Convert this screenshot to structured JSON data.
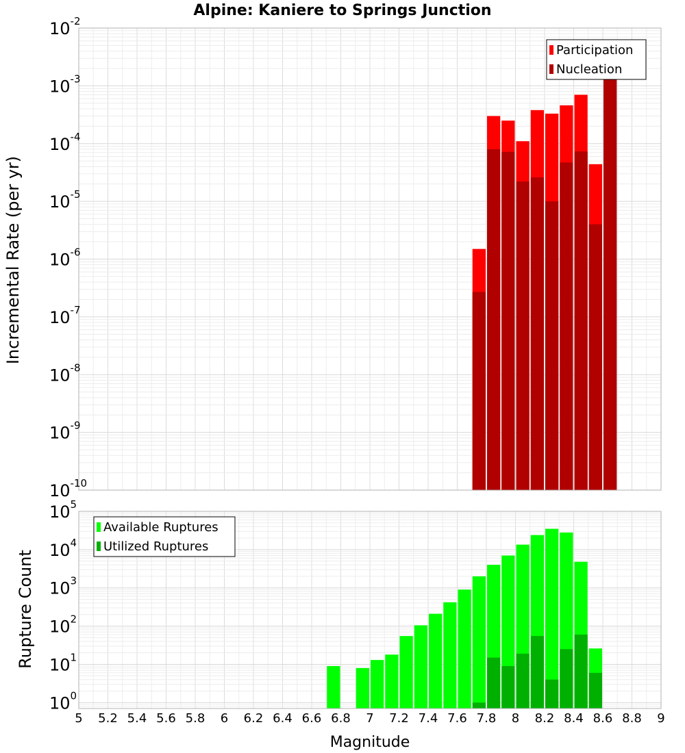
{
  "chart_data": [
    {
      "type": "bar",
      "title": "Alpine: Kaniere to Springs Junction",
      "ylabel": "Incremental Rate (per yr)",
      "xlabel": "",
      "xlim": [
        5,
        9
      ],
      "ylim": [
        1e-10,
        0.01
      ],
      "yscale": "log",
      "bar_width": 0.1,
      "grid": true,
      "legend_position": "top-right",
      "x": [
        7.7,
        7.8,
        7.9,
        8.0,
        8.1,
        8.2,
        8.3,
        8.4,
        8.5,
        8.6
      ],
      "series": [
        {
          "name": "Participation",
          "color": "#ff0000",
          "values": [
            1.5e-06,
            0.0003,
            0.00025,
            0.00011,
            0.00038,
            0.00033,
            0.00046,
            0.0007,
            4.4e-05,
            0.0014
          ]
        },
        {
          "name": "Nucleation",
          "color": "#b00000",
          "values": [
            2.7e-07,
            8e-05,
            7.2e-05,
            2.2e-05,
            2.6e-05,
            1e-05,
            4.7e-05,
            7.3e-05,
            4e-06,
            0.0014
          ]
        }
      ]
    },
    {
      "type": "bar",
      "title": "",
      "ylabel": "Rupture Count",
      "xlabel": "Magnitude",
      "xlim": [
        5,
        9
      ],
      "ylim": [
        0.7,
        100000.0
      ],
      "yscale": "log",
      "bar_width": 0.1,
      "grid": true,
      "legend_position": "top-left",
      "x": [
        6.7,
        6.8,
        6.9,
        7.0,
        7.1,
        7.2,
        7.3,
        7.4,
        7.5,
        7.6,
        7.7,
        7.8,
        7.9,
        8.0,
        8.1,
        8.2,
        8.3,
        8.4,
        8.5,
        8.6
      ],
      "series": [
        {
          "name": "Available Ruptures",
          "color": "#00ff00",
          "values": [
            9,
            0,
            8,
            13,
            18,
            55,
            105,
            210,
            420,
            900,
            2000,
            4000,
            7000,
            13500,
            24000,
            35000,
            28000,
            4800,
            26,
            0
          ]
        },
        {
          "name": "Utilized Ruptures",
          "color": "#00b000",
          "values": [
            0,
            0,
            0,
            0,
            0,
            0,
            0,
            0,
            0,
            0,
            1,
            15,
            9,
            19,
            55,
            4,
            25,
            60,
            6,
            0
          ]
        }
      ],
      "xticks": [
        "5",
        "5.2",
        "5.4",
        "5.6",
        "5.8",
        "6",
        "6.2",
        "6.4",
        "6.6",
        "6.8",
        "7",
        "7.2",
        "7.4",
        "7.6",
        "7.8",
        "8",
        "8.2",
        "8.4",
        "8.6",
        "8.8",
        "9"
      ]
    }
  ]
}
